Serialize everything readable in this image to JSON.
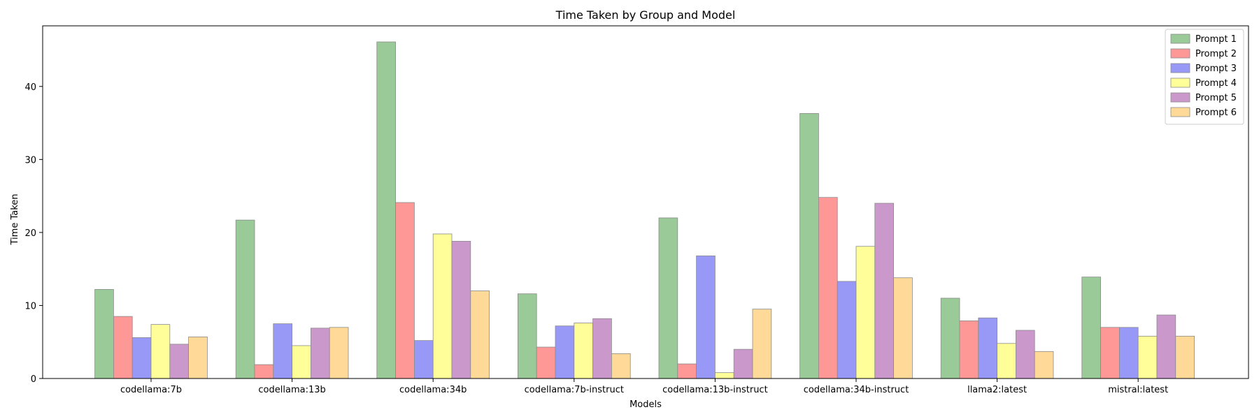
{
  "chart_data": {
    "type": "bar",
    "title": "Time Taken by Group and Model",
    "xlabel": "Models",
    "ylabel": "Time Taken",
    "ylim": [
      0,
      48.3
    ],
    "yticks": [
      0,
      10,
      20,
      30,
      40
    ],
    "grid": false,
    "legend_position": "upper-right",
    "categories": [
      "codellama:7b",
      "codellama:13b",
      "codellama:34b",
      "codellama:7b-instruct",
      "codellama:13b-instruct",
      "codellama:34b-instruct",
      "llama2:latest",
      "mistral:latest"
    ],
    "series": [
      {
        "name": "Prompt 1",
        "color": "#9aca98",
        "values": [
          12.2,
          21.7,
          46.1,
          11.6,
          22.0,
          36.3,
          11.0,
          13.9
        ]
      },
      {
        "name": "Prompt 2",
        "color": "#fe9897",
        "values": [
          8.5,
          1.9,
          24.1,
          4.3,
          2.0,
          24.8,
          7.9,
          7.0
        ]
      },
      {
        "name": "Prompt 3",
        "color": "#9898f7",
        "values": [
          5.6,
          7.5,
          5.2,
          7.2,
          16.8,
          13.3,
          8.3,
          7.0
        ]
      },
      {
        "name": "Prompt 4",
        "color": "#fffe98",
        "values": [
          7.4,
          4.5,
          19.8,
          7.6,
          0.8,
          18.1,
          4.8,
          5.8
        ]
      },
      {
        "name": "Prompt 5",
        "color": "#cb98cb",
        "values": [
          4.7,
          6.9,
          18.8,
          8.2,
          4.0,
          24.0,
          6.6,
          8.7
        ]
      },
      {
        "name": "Prompt 6",
        "color": "#fed997",
        "values": [
          5.7,
          7.0,
          12.0,
          3.4,
          9.5,
          13.8,
          3.7,
          5.8
        ]
      }
    ]
  }
}
